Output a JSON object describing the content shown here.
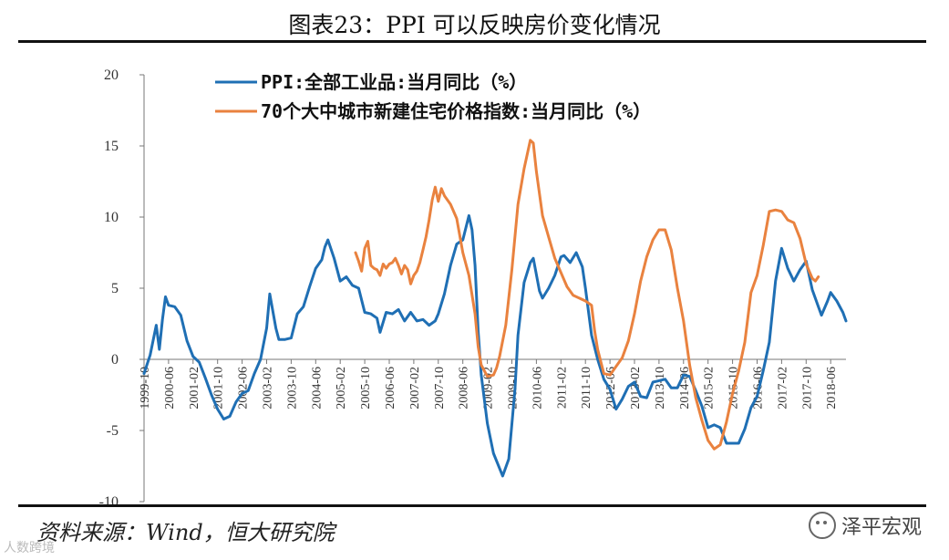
{
  "header": {
    "title": "图表23：PPI 可以反映房价变化情况"
  },
  "footer": {
    "source": "资料来源：Wind，恒大研究院",
    "brand": "泽平宏观",
    "watermark": "人数跨境"
  },
  "chart_data": {
    "type": "line",
    "title": "图表23：PPI 可以反映房价变化情况",
    "xlabel": "",
    "ylabel": "",
    "ylim": [
      -10,
      20
    ],
    "yticks": [
      -10,
      -5,
      0,
      5,
      10,
      15,
      20
    ],
    "ytick_labels": [
      "-10",
      "-5",
      "0",
      "5",
      "10",
      "15",
      "20"
    ],
    "x_start": "1999-10",
    "x_end": "2018-11",
    "xtick_labels": [
      "1999-10",
      "2000-06",
      "2001-02",
      "2001-10",
      "2002-06",
      "2003-02",
      "2003-10",
      "2004-06",
      "2005-02",
      "2005-10",
      "2006-06",
      "2007-02",
      "2007-10",
      "2008-06",
      "2009-02",
      "2009-10",
      "2010-06",
      "2011-02",
      "2011-10",
      "2012-06",
      "2013-02",
      "2013-10",
      "2014-06",
      "2015-02",
      "2015-10",
      "2016-06",
      "2017-02",
      "2017-10",
      "2018-06"
    ],
    "legend_position": "top-center",
    "series": [
      {
        "name": "PPI:全部工业品:当月同比（%）",
        "color": "#1F6FB4",
        "points": [
          [
            "1999-10",
            -1.0
          ],
          [
            "1999-12",
            0.3
          ],
          [
            "2000-02",
            2.4
          ],
          [
            "2000-03",
            0.7
          ],
          [
            "2000-04",
            2.8
          ],
          [
            "2000-05",
            4.4
          ],
          [
            "2000-06",
            3.8
          ],
          [
            "2000-08",
            3.7
          ],
          [
            "2000-10",
            3.1
          ],
          [
            "2000-12",
            1.3
          ],
          [
            "2001-02",
            0.2
          ],
          [
            "2001-04",
            -0.2
          ],
          [
            "2001-06",
            -1.3
          ],
          [
            "2001-08",
            -2.5
          ],
          [
            "2001-10",
            -3.5
          ],
          [
            "2001-12",
            -4.2
          ],
          [
            "2002-02",
            -4.0
          ],
          [
            "2002-04",
            -3.0
          ],
          [
            "2002-06",
            -2.4
          ],
          [
            "2002-08",
            -2.2
          ],
          [
            "2002-10",
            -1.0
          ],
          [
            "2002-12",
            0.0
          ],
          [
            "2003-02",
            2.2
          ],
          [
            "2003-03",
            4.6
          ],
          [
            "2003-05",
            2.2
          ],
          [
            "2003-06",
            1.4
          ],
          [
            "2003-08",
            1.4
          ],
          [
            "2003-10",
            1.5
          ],
          [
            "2003-12",
            3.2
          ],
          [
            "2004-02",
            3.7
          ],
          [
            "2004-04",
            5.1
          ],
          [
            "2004-06",
            6.4
          ],
          [
            "2004-08",
            7.0
          ],
          [
            "2004-09",
            7.9
          ],
          [
            "2004-10",
            8.4
          ],
          [
            "2004-12",
            7.1
          ],
          [
            "2005-02",
            5.5
          ],
          [
            "2005-04",
            5.8
          ],
          [
            "2005-06",
            5.2
          ],
          [
            "2005-08",
            5.0
          ],
          [
            "2005-10",
            3.3
          ],
          [
            "2005-12",
            3.2
          ],
          [
            "2006-02",
            2.9
          ],
          [
            "2006-03",
            1.9
          ],
          [
            "2006-05",
            3.3
          ],
          [
            "2006-07",
            3.2
          ],
          [
            "2006-09",
            3.5
          ],
          [
            "2006-11",
            2.7
          ],
          [
            "2007-01",
            3.3
          ],
          [
            "2007-03",
            2.7
          ],
          [
            "2007-05",
            2.8
          ],
          [
            "2007-07",
            2.4
          ],
          [
            "2007-09",
            2.7
          ],
          [
            "2007-10",
            3.2
          ],
          [
            "2007-12",
            4.6
          ],
          [
            "2008-02",
            6.6
          ],
          [
            "2008-04",
            8.1
          ],
          [
            "2008-06",
            8.4
          ],
          [
            "2008-08",
            10.1
          ],
          [
            "2008-09",
            9.1
          ],
          [
            "2008-10",
            6.6
          ],
          [
            "2008-11",
            2.0
          ],
          [
            "2008-12",
            -1.1
          ],
          [
            "2009-02",
            -4.5
          ],
          [
            "2009-04",
            -6.6
          ],
          [
            "2009-07",
            -8.2
          ],
          [
            "2009-09",
            -7.0
          ],
          [
            "2009-11",
            -2.1
          ],
          [
            "2009-12",
            1.7
          ],
          [
            "2010-02",
            5.4
          ],
          [
            "2010-04",
            6.8
          ],
          [
            "2010-05",
            7.1
          ],
          [
            "2010-07",
            4.8
          ],
          [
            "2010-08",
            4.3
          ],
          [
            "2010-10",
            5.0
          ],
          [
            "2010-12",
            5.9
          ],
          [
            "2011-02",
            7.2
          ],
          [
            "2011-03",
            7.3
          ],
          [
            "2011-05",
            6.8
          ],
          [
            "2011-07",
            7.5
          ],
          [
            "2011-09",
            6.5
          ],
          [
            "2011-10",
            5.0
          ],
          [
            "2011-12",
            1.7
          ],
          [
            "2012-02",
            0.0
          ],
          [
            "2012-04",
            -1.4
          ],
          [
            "2012-06",
            -2.1
          ],
          [
            "2012-08",
            -3.5
          ],
          [
            "2012-10",
            -2.8
          ],
          [
            "2012-12",
            -1.9
          ],
          [
            "2013-02",
            -1.6
          ],
          [
            "2013-04",
            -2.6
          ],
          [
            "2013-06",
            -2.7
          ],
          [
            "2013-08",
            -1.6
          ],
          [
            "2013-10",
            -1.5
          ],
          [
            "2013-12",
            -1.4
          ],
          [
            "2014-02",
            -2.0
          ],
          [
            "2014-04",
            -2.0
          ],
          [
            "2014-06",
            -1.1
          ],
          [
            "2014-08",
            -1.2
          ],
          [
            "2014-10",
            -2.2
          ],
          [
            "2014-12",
            -3.3
          ],
          [
            "2015-02",
            -4.8
          ],
          [
            "2015-04",
            -4.6
          ],
          [
            "2015-06",
            -4.8
          ],
          [
            "2015-08",
            -5.9
          ],
          [
            "2015-10",
            -5.9
          ],
          [
            "2015-12",
            -5.9
          ],
          [
            "2016-02",
            -4.9
          ],
          [
            "2016-04",
            -3.4
          ],
          [
            "2016-06",
            -2.6
          ],
          [
            "2016-08",
            -0.8
          ],
          [
            "2016-10",
            1.2
          ],
          [
            "2016-12",
            5.5
          ],
          [
            "2017-02",
            7.8
          ],
          [
            "2017-04",
            6.4
          ],
          [
            "2017-06",
            5.5
          ],
          [
            "2017-08",
            6.3
          ],
          [
            "2017-10",
            6.9
          ],
          [
            "2017-12",
            4.9
          ],
          [
            "2018-02",
            3.7
          ],
          [
            "2018-03",
            3.1
          ],
          [
            "2018-05",
            4.1
          ],
          [
            "2018-06",
            4.7
          ],
          [
            "2018-08",
            4.1
          ],
          [
            "2018-10",
            3.3
          ],
          [
            "2018-11",
            2.7
          ]
        ]
      },
      {
        "name": "70个大中城市新建住宅价格指数:当月同比（%）",
        "color": "#E9823F",
        "points": [
          [
            "2005-07",
            7.5
          ],
          [
            "2005-08",
            6.9
          ],
          [
            "2005-09",
            6.2
          ],
          [
            "2005-10",
            7.8
          ],
          [
            "2005-11",
            8.3
          ],
          [
            "2005-12",
            6.6
          ],
          [
            "2006-01",
            6.4
          ],
          [
            "2006-02",
            6.3
          ],
          [
            "2006-03",
            5.9
          ],
          [
            "2006-04",
            6.7
          ],
          [
            "2006-05",
            6.4
          ],
          [
            "2006-06",
            6.7
          ],
          [
            "2006-07",
            6.8
          ],
          [
            "2006-08",
            7.1
          ],
          [
            "2006-09",
            6.6
          ],
          [
            "2006-10",
            6.0
          ],
          [
            "2006-11",
            6.6
          ],
          [
            "2006-12",
            6.3
          ],
          [
            "2007-01",
            5.3
          ],
          [
            "2007-02",
            5.9
          ],
          [
            "2007-03",
            6.2
          ],
          [
            "2007-04",
            6.8
          ],
          [
            "2007-05",
            7.7
          ],
          [
            "2007-06",
            8.6
          ],
          [
            "2007-07",
            9.8
          ],
          [
            "2007-08",
            11.2
          ],
          [
            "2007-09",
            12.1
          ],
          [
            "2007-10",
            11.1
          ],
          [
            "2007-11",
            12.0
          ],
          [
            "2007-12",
            11.5
          ],
          [
            "2008-02",
            10.9
          ],
          [
            "2008-04",
            9.9
          ],
          [
            "2008-06",
            7.5
          ],
          [
            "2008-08",
            5.9
          ],
          [
            "2008-10",
            3.2
          ],
          [
            "2008-11",
            0.9
          ],
          [
            "2008-12",
            -0.4
          ],
          [
            "2009-02",
            -1.2
          ],
          [
            "2009-04",
            -1.1
          ],
          [
            "2009-05",
            -0.6
          ],
          [
            "2009-06",
            0.2
          ],
          [
            "2009-08",
            2.4
          ],
          [
            "2009-10",
            6.3
          ],
          [
            "2009-12",
            10.9
          ],
          [
            "2010-02",
            13.4
          ],
          [
            "2010-04",
            15.4
          ],
          [
            "2010-05",
            15.2
          ],
          [
            "2010-06",
            13.2
          ],
          [
            "2010-08",
            10.1
          ],
          [
            "2010-10",
            8.6
          ],
          [
            "2010-12",
            7.1
          ],
          [
            "2011-02",
            6.1
          ],
          [
            "2011-04",
            5.1
          ],
          [
            "2011-06",
            4.5
          ],
          [
            "2011-08",
            4.3
          ],
          [
            "2011-10",
            4.1
          ],
          [
            "2011-12",
            3.8
          ],
          [
            "2012-01",
            2.0
          ],
          [
            "2012-02",
            0.7
          ],
          [
            "2012-04",
            -1.0
          ],
          [
            "2012-06",
            -1.1
          ],
          [
            "2012-08",
            -0.5
          ],
          [
            "2012-10",
            0.1
          ],
          [
            "2012-12",
            1.3
          ],
          [
            "2013-02",
            3.2
          ],
          [
            "2013-04",
            5.5
          ],
          [
            "2013-06",
            7.2
          ],
          [
            "2013-08",
            8.4
          ],
          [
            "2013-10",
            9.1
          ],
          [
            "2013-12",
            9.1
          ],
          [
            "2014-02",
            7.7
          ],
          [
            "2014-04",
            5.0
          ],
          [
            "2014-06",
            2.7
          ],
          [
            "2014-08",
            -0.4
          ],
          [
            "2014-10",
            -2.7
          ],
          [
            "2014-12",
            -4.3
          ],
          [
            "2015-02",
            -5.7
          ],
          [
            "2015-04",
            -6.3
          ],
          [
            "2015-06",
            -6.0
          ],
          [
            "2015-08",
            -4.4
          ],
          [
            "2015-10",
            -2.4
          ],
          [
            "2015-12",
            -0.8
          ],
          [
            "2016-02",
            1.2
          ],
          [
            "2016-04",
            4.7
          ],
          [
            "2016-06",
            5.9
          ],
          [
            "2016-08",
            8.0
          ],
          [
            "2016-10",
            10.4
          ],
          [
            "2016-12",
            10.5
          ],
          [
            "2017-02",
            10.4
          ],
          [
            "2017-04",
            9.8
          ],
          [
            "2017-06",
            9.6
          ],
          [
            "2017-08",
            8.5
          ],
          [
            "2017-10",
            6.7
          ],
          [
            "2017-12",
            5.7
          ],
          [
            "2018-01",
            5.5
          ],
          [
            "2018-02",
            5.8
          ]
        ]
      }
    ]
  }
}
